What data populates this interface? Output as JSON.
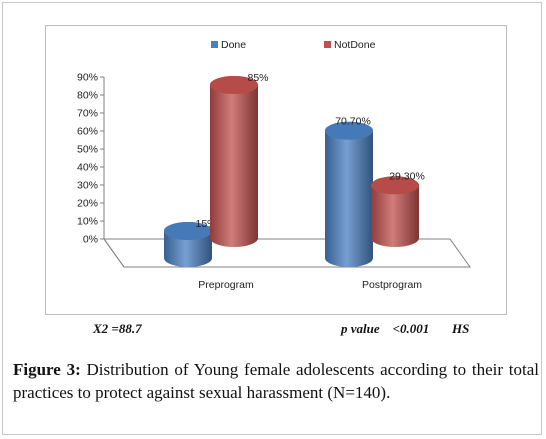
{
  "chart_data": {
    "type": "bar",
    "categories": [
      "Preprogram",
      "Postprogram"
    ],
    "series": [
      {
        "name": "Done",
        "values": [
          15,
          70.7
        ],
        "labels": [
          "15%",
          "70.70%"
        ],
        "color": "#4a7fc1"
      },
      {
        "name": "NotDone",
        "values": [
          85,
          29.3
        ],
        "labels": [
          "85%",
          "29.30%"
        ],
        "color": "#c0504d"
      }
    ],
    "ylim": [
      0,
      90
    ],
    "yticks": [
      "0%",
      "10%",
      "20%",
      "30%",
      "40%",
      "50%",
      "60%",
      "70%",
      "80%",
      "90%"
    ],
    "legend": "top",
    "grid": false,
    "title": "",
    "xlabel": "",
    "ylabel": ""
  },
  "stats": {
    "chi": "X2 =88.7",
    "pvalue": "p value    <0.001       HS"
  },
  "caption": {
    "label": "Figure 3:",
    "text": " Distribution of Young female adolescents according to their total practices to protect against sexual harassment (N=140)."
  }
}
